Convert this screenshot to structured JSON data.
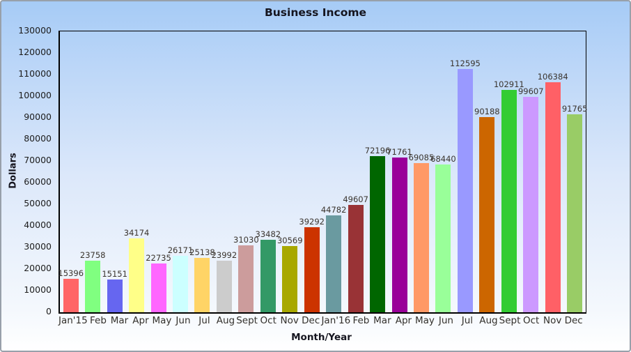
{
  "window": {
    "border_color": "#98a0aa",
    "background_top": "#a6cbf6",
    "background_bottom": "#ffffff"
  },
  "chart_data": {
    "type": "bar",
    "title": "Business Income",
    "xlabel": "Month/Year",
    "ylabel": "Dollars",
    "ylim": [
      0,
      130000
    ],
    "ytick_step": 10000,
    "grid": false,
    "legend": false,
    "value_labels_shown": true,
    "categories": [
      "Jan'15",
      "Feb",
      "Mar",
      "Apr",
      "May",
      "Jun",
      "Jul",
      "Aug",
      "Sept",
      "Oct",
      "Nov",
      "Dec",
      "Jan'16",
      "Feb",
      "Mar",
      "Apr",
      "May",
      "Jun",
      "Jul",
      "Aug",
      "Sept",
      "Oct",
      "Nov",
      "Dec"
    ],
    "values": [
      15396,
      23758,
      15151,
      34174,
      22735,
      26171,
      25138,
      23992,
      31030,
      33482,
      30569,
      39292,
      44782,
      49607,
      72196,
      71761,
      69085,
      68440,
      112595,
      90188,
      102911,
      99607,
      106384,
      91765
    ],
    "bar_colors": [
      "#ff6666",
      "#80ff80",
      "#6666f0",
      "#ffff88",
      "#ff66ff",
      "#ccffff",
      "#ffd466",
      "#cccccc",
      "#cc9c9c",
      "#339966",
      "#a8a800",
      "#cc3300",
      "#6a9aa0",
      "#993336",
      "#006600",
      "#990099",
      "#ff9966",
      "#99ff99",
      "#9999ff",
      "#cc6600",
      "#33cc33",
      "#cc99ff",
      "#ff6066",
      "#99cc66"
    ]
  }
}
